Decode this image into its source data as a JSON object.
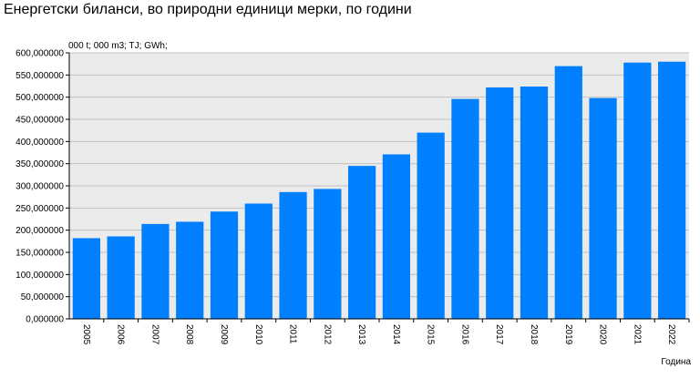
{
  "chart_title": "Енергетски биланси, во природни единици мерки, по години",
  "unit_label": "000 t; 000 m3; TJ; GWh;",
  "chart_data": {
    "type": "bar",
    "title": "Енергетски биланси, во природни единици мерки, по години",
    "xlabel": "Година",
    "ylabel": "000 t; 000 m3; TJ; GWh;",
    "categories": [
      "2005",
      "2006",
      "2007",
      "2008",
      "2009",
      "2010",
      "2011",
      "2012",
      "2013",
      "2014",
      "2015",
      "2016",
      "2017",
      "2018",
      "2019",
      "2020",
      "2021",
      "2022"
    ],
    "values": [
      182000,
      186000,
      214000,
      219000,
      242000,
      260000,
      286000,
      293000,
      345000,
      371000,
      420000,
      496000,
      522000,
      524000,
      570000,
      498000,
      578000,
      580000
    ],
    "ylim": [
      0,
      600000
    ],
    "y_ticks": [
      0,
      50000,
      100000,
      150000,
      200000,
      250000,
      300000,
      350000,
      400000,
      450000,
      500000,
      550000,
      600000
    ],
    "y_tick_labels": [
      "0,000000",
      "50,000000",
      "100,000000",
      "150,000000",
      "200,000000",
      "250,000000",
      "300,000000",
      "350,000000",
      "400,000000",
      "450,000000",
      "500,000000",
      "550,000000",
      "600,000000"
    ],
    "grid": true,
    "bar_color": "#0080ff",
    "plot_background": "#ebebeb",
    "gridline_color": "#c0c0c0"
  }
}
